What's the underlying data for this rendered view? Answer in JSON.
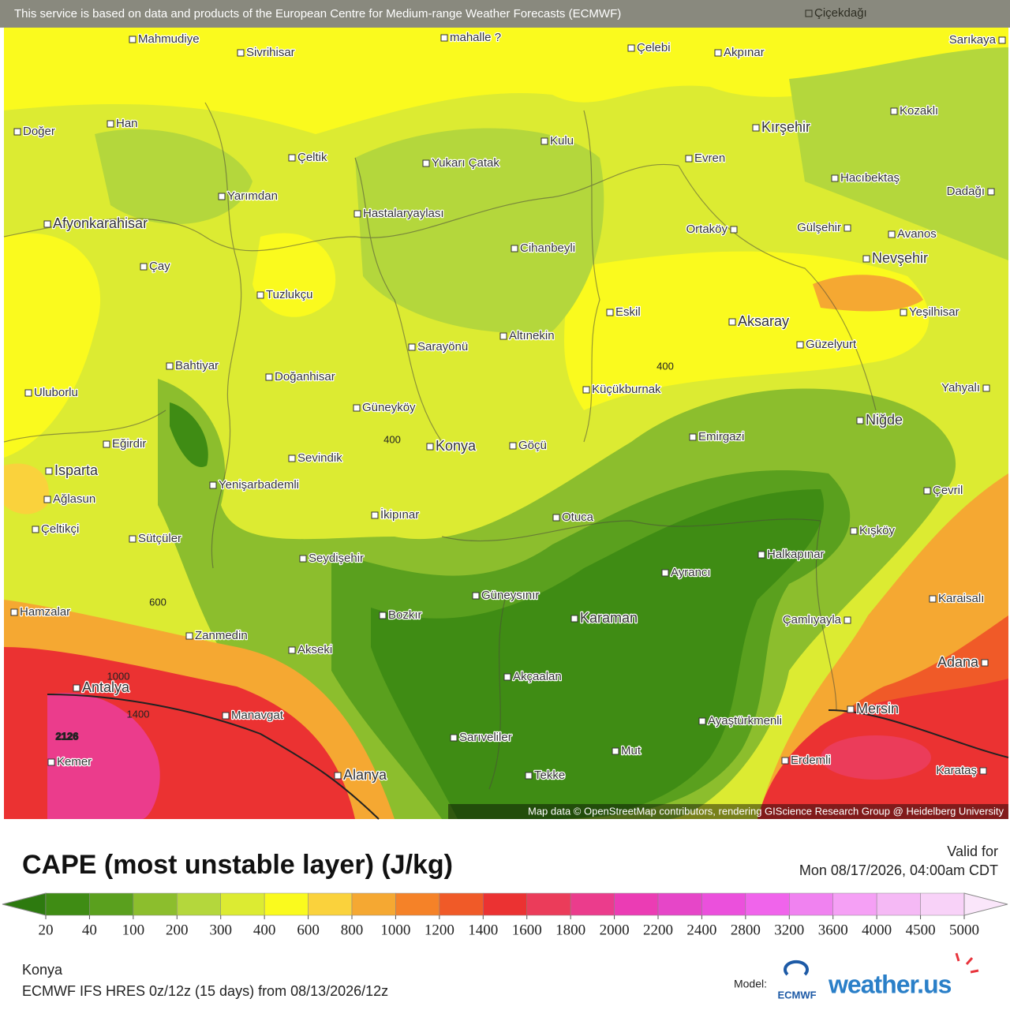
{
  "banner": "This service is based on data and products of the European Centre for Medium-range Weather Forecasts (ECMWF)",
  "attribution": "Map data © OpenStreetMap contributors, rendering GIScience Research Group @ Heidelberg University",
  "places": [
    "Çiçekdağı",
    "Mahmudiye",
    "Sivrihisar",
    "mahalle ?",
    "Çelebi",
    "Akpınar",
    "Sarıkaya",
    "Doğer",
    "Han",
    "Kozaklı",
    "Kırşehir",
    "Kulu",
    "Çeltik",
    "Yukarı Çatak",
    "Evren",
    "Hacıbektaş",
    "Dadağı",
    "Yarımdan",
    "Hastalaryaylası",
    "Afyonkarahisar",
    "Ortaköy",
    "Gülşehir",
    "Avanos",
    "Çay",
    "Cihanbeyli",
    "Nevşehir",
    "Tuzlukçu",
    "Eskil",
    "Aksaray",
    "Yeşilhisar",
    "Altınekin",
    "Sarayönü",
    "Güzelyurt",
    "Bahtiyar",
    "Doğanhisar",
    "Küçükburnak",
    "Yahyalı",
    "Uluborlu",
    "Güneyköy",
    "Niğde",
    "Emirgazi",
    "Eğirdir",
    "Konya",
    "Göçü",
    "Sevindik",
    "Isparta",
    "Yenişarbademli",
    "Çevril",
    "Ağlasun",
    "İkipınar",
    "Otuca",
    "Çeltikçi",
    "Kışköy",
    "Sütçüler",
    "Halkapınar",
    "Seydişehir",
    "Ayrancı",
    "Güneysınır",
    "Karaisalı",
    "Hamzalar",
    "Bozkır",
    "Karaman",
    "Çamlıyayla",
    "Zanmedin",
    "Akseki",
    "Adana",
    "Akçaalan",
    "Antalya",
    "Mersin",
    "Manavgat",
    "Ayaştürkmenli",
    "Sarıveliler",
    "Mut",
    "Kemer",
    "Erdemli",
    "Karataş",
    "Alanya",
    "Tekke"
  ],
  "contour_labels": [
    "400",
    "400",
    "600",
    "1000",
    "1400",
    "2126"
  ],
  "title": "CAPE (most unstable layer) (J/kg)",
  "valid_label": "Valid for",
  "valid_time": "Mon 08/17/2026, 04:00am CDT",
  "colorbar": {
    "ticks": [
      20,
      40,
      100,
      200,
      300,
      400,
      600,
      800,
      1000,
      1200,
      1400,
      1600,
      1800,
      2000,
      2200,
      2400,
      2800,
      3200,
      3600,
      4000,
      4500,
      5000
    ],
    "colors": [
      "#2d7a0f",
      "#3f8c14",
      "#5aa01e",
      "#8cbe2d",
      "#b4d73c",
      "#dceb32",
      "#fafa1e",
      "#fad23c",
      "#f5a832",
      "#f58228",
      "#f05a28",
      "#eb3232",
      "#eb3c5a",
      "#eb3c8c",
      "#eb3cb4",
      "#e646c8",
      "#eb50dc",
      "#f064eb",
      "#f082f0",
      "#f5a0f5",
      "#f5b9f5",
      "#f8d2f8",
      "#fae6fa"
    ]
  },
  "location": "Konya",
  "model_run": "ECMWF IFS HRES 0z/12z (15 days) from 08/13/2026/12z",
  "model_label": "Model:",
  "model_logo": "ECMWF",
  "brand": "weather.us"
}
